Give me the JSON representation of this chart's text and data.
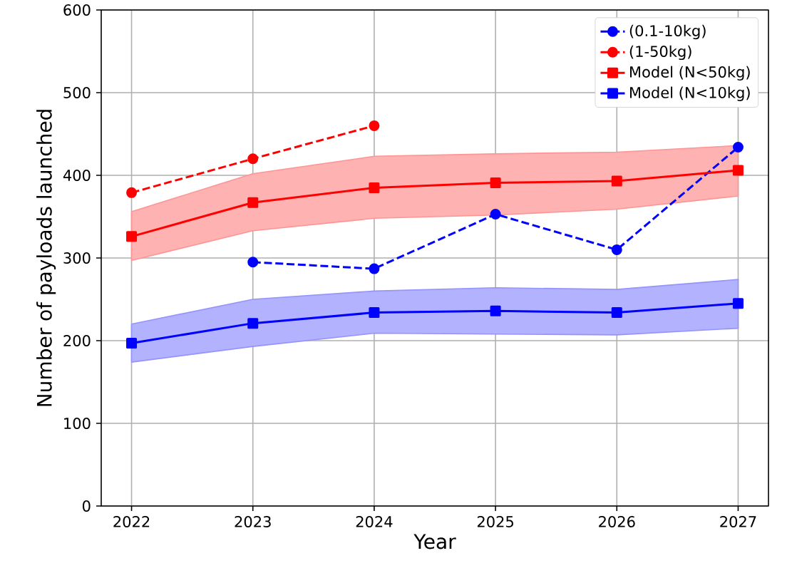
{
  "chart_data": {
    "type": "line",
    "xlabel": "Year",
    "ylabel": "Number of payloads launched",
    "x": [
      2022,
      2023,
      2024,
      2025,
      2026,
      2027
    ],
    "xlim": [
      2021.75,
      2027.25
    ],
    "xticks": [
      2022,
      2023,
      2024,
      2025,
      2026,
      2027
    ],
    "ylim": [
      0,
      600
    ],
    "yticks": [
      0,
      100,
      200,
      300,
      400,
      500,
      600
    ],
    "grid": true,
    "legend": "top right",
    "series": [
      {
        "name": "(0.1-10kg)",
        "color": "#0000ff",
        "marker": "circle",
        "line_style": "dashed",
        "values": [
          null,
          295,
          287,
          353,
          310,
          434
        ]
      },
      {
        "name": "(1-50kg)",
        "color": "#ff0000",
        "marker": "circle",
        "line_style": "dashed",
        "values": [
          379,
          420,
          460,
          null,
          null,
          null
        ]
      },
      {
        "name": "Model (N<50kg)",
        "color": "#ff0000",
        "marker": "square",
        "line_style": "solid",
        "values": [
          326,
          367,
          385,
          391,
          393,
          406
        ],
        "lower": [
          297,
          333,
          348,
          352,
          359,
          375
        ],
        "upper": [
          356,
          402,
          423,
          426,
          428,
          436
        ]
      },
      {
        "name": "Model (N<10kg)",
        "color": "#0000ff",
        "marker": "square",
        "line_style": "solid",
        "values": [
          197,
          221,
          234,
          236,
          234,
          245
        ],
        "lower": [
          174,
          193,
          209,
          208,
          207,
          215
        ],
        "upper": [
          220,
          250,
          260,
          264,
          262,
          274
        ]
      }
    ]
  }
}
